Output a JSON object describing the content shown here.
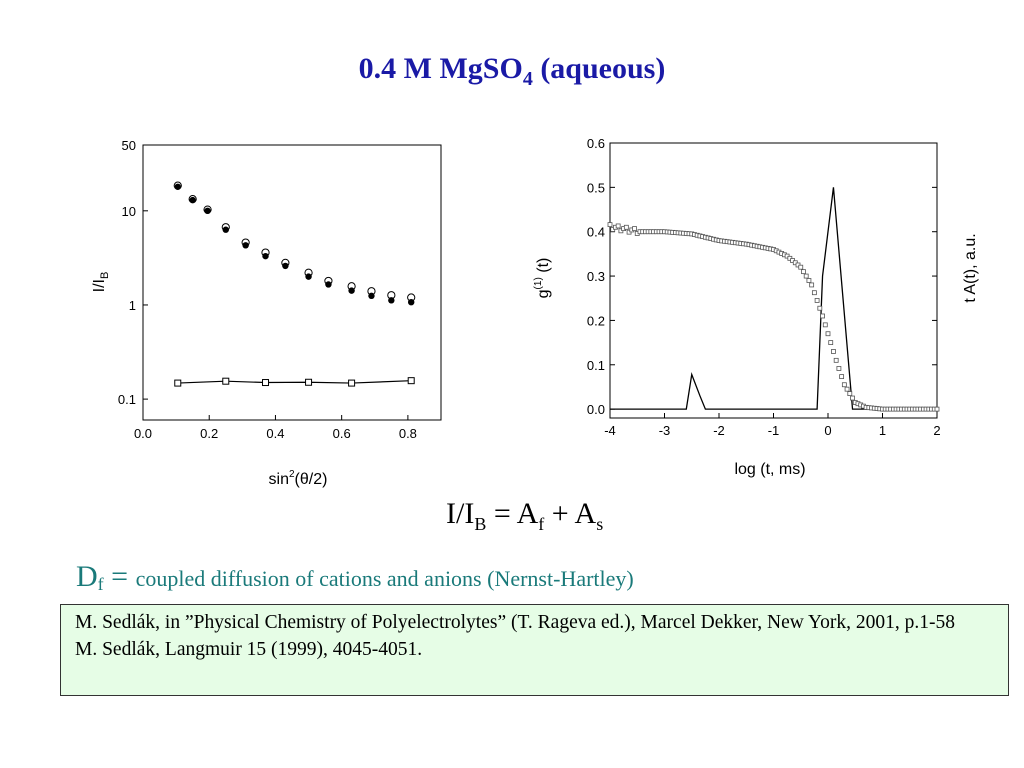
{
  "slide": {
    "title_main": "0.4 M MgSO",
    "title_sub": "4",
    "title_tail": " (aqueous)"
  },
  "formula": {
    "lhs": "I/I",
    "lhs_sub": "B",
    "eq": " = A",
    "af_sub": "f",
    "plus": " + A",
    "as_sub": "s"
  },
  "df": {
    "symbol": "D",
    "symbol_sub": "f",
    "eq": " = ",
    "description": "coupled diffusion of cations and anions (Nernst-Hartley)"
  },
  "references": [
    "M. Sedlák, in ”Physical Chemistry of  Polyelectrolytes” (T. Rageva ed.), Marcel Dekker, New York, 2001, p.1-58",
    "M. Sedlák, Langmuir 15 (1999), 4045-4051."
  ],
  "chart_data": [
    {
      "type": "scatter",
      "xlabel": "sin²(θ/2)",
      "ylabel": "I/I_B",
      "xlim": [
        0.0,
        0.9
      ],
      "ylim": [
        0.06,
        50
      ],
      "yscale": "log",
      "xticks": [
        "0.0",
        "0.2",
        "0.4",
        "0.6",
        "0.8"
      ],
      "yticks": [
        "0.1",
        "1",
        "10",
        "50"
      ],
      "grid": false,
      "legend": "none",
      "series": [
        {
          "marker": "filled-circle",
          "x": [
            0.105,
            0.15,
            0.195,
            0.25,
            0.31,
            0.37,
            0.43,
            0.5,
            0.56,
            0.63,
            0.69,
            0.75,
            0.81
          ],
          "y": [
            18,
            13,
            10,
            6.3,
            4.3,
            3.3,
            2.6,
            2.0,
            1.65,
            1.42,
            1.25,
            1.12,
            1.07
          ]
        },
        {
          "marker": "open-circle",
          "x": [
            0.105,
            0.15,
            0.195,
            0.25,
            0.31,
            0.37,
            0.43,
            0.5,
            0.56,
            0.63,
            0.69,
            0.75,
            0.81
          ],
          "y": [
            18.5,
            13.3,
            10.3,
            6.7,
            4.6,
            3.6,
            2.8,
            2.2,
            1.8,
            1.58,
            1.4,
            1.27,
            1.2
          ]
        },
        {
          "marker": "open-square-line",
          "x": [
            0.105,
            0.25,
            0.37,
            0.5,
            0.63,
            0.81
          ],
          "y": [
            0.148,
            0.155,
            0.15,
            0.151,
            0.148,
            0.157
          ]
        }
      ]
    },
    {
      "type": "line",
      "xlabel": "log (t, ms)",
      "ylabel": "g(1) (t)",
      "ylabel_right": "t A(t), a.u.",
      "xlim": [
        -4,
        2
      ],
      "ylim": [
        -0.02,
        0.6
      ],
      "xticks": [
        "-4",
        "-3",
        "-2",
        "-1",
        "0",
        "1",
        "2"
      ],
      "yticks": [
        "0.0",
        "0.1",
        "0.2",
        "0.3",
        "0.4",
        "0.5",
        "0.6"
      ],
      "grid": false,
      "legend": "none",
      "correlation_function": {
        "marker": "open-square",
        "x": [
          -4.0,
          -3.5,
          -3.0,
          -2.5,
          -2.0,
          -1.5,
          -1.0,
          -0.75,
          -0.5,
          -0.3,
          -0.1,
          0.0,
          0.15,
          0.3,
          0.5,
          0.7,
          1.0,
          1.5,
          2.0
        ],
        "y": [
          0.41,
          0.4,
          0.4,
          0.395,
          0.38,
          0.372,
          0.36,
          0.345,
          0.32,
          0.28,
          0.21,
          0.17,
          0.11,
          0.055,
          0.015,
          0.004,
          0.0,
          0.0,
          0.0
        ]
      },
      "distribution": {
        "marker": "line",
        "x": [
          -4.0,
          -2.6,
          -2.5,
          -2.35,
          -2.25,
          -0.2,
          -0.1,
          0.1,
          0.45,
          0.5,
          2.0
        ],
        "y": [
          0.0,
          0.0,
          0.078,
          0.03,
          0.0,
          0.0,
          0.3,
          0.5,
          0.0,
          0.0,
          0.0
        ]
      }
    }
  ]
}
